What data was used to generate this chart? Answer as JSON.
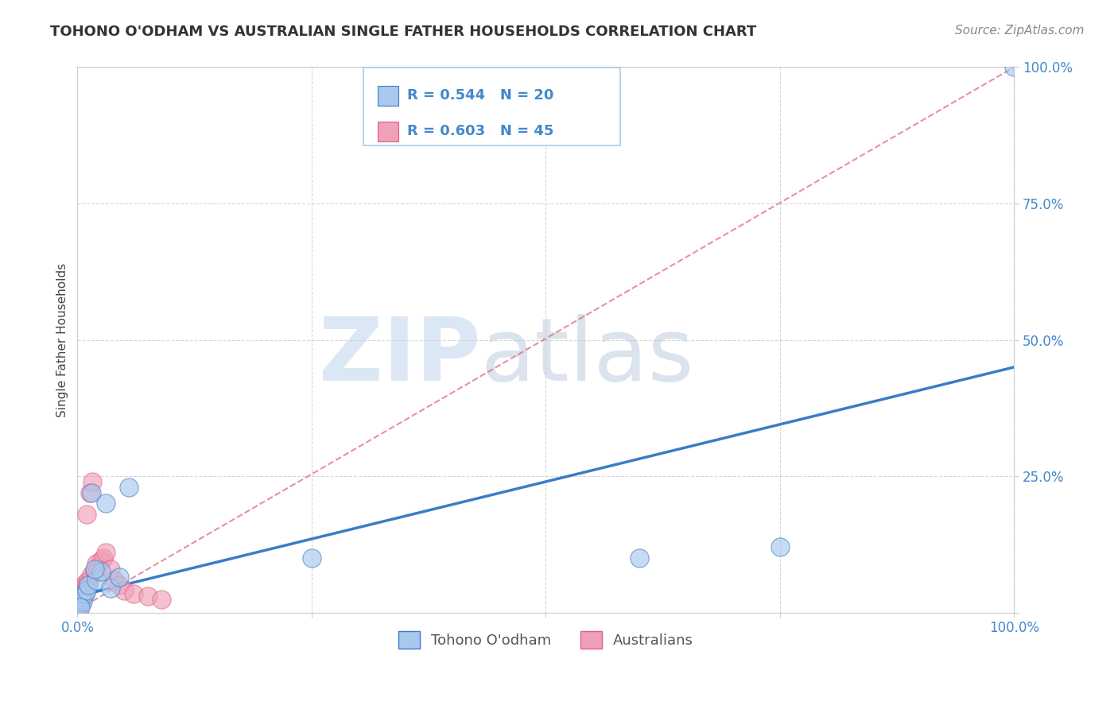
{
  "title": "TOHONO O'ODHAM VS AUSTRALIAN SINGLE FATHER HOUSEHOLDS CORRELATION CHART",
  "source": "Source: ZipAtlas.com",
  "ylabel": "Single Father Households",
  "xlim": [
    0,
    100
  ],
  "ylim": [
    0,
    100
  ],
  "legend1_r": "R = 0.544",
  "legend1_n": "N = 20",
  "legend2_r": "R = 0.603",
  "legend2_n": "N = 45",
  "blue_color": "#A8C8EE",
  "pink_color": "#F0A0B8",
  "blue_line_color": "#3A7CC8",
  "pink_line_color": "#E06080",
  "blue_line_x": [
    0,
    100
  ],
  "blue_line_y": [
    3.0,
    45.0
  ],
  "pink_line_x": [
    0,
    100
  ],
  "pink_line_y": [
    0.5,
    100.0
  ],
  "tohono_x": [
    0.2,
    0.4,
    0.5,
    0.6,
    0.8,
    1.0,
    1.2,
    1.5,
    2.0,
    2.5,
    3.0,
    3.5,
    4.5,
    5.5,
    0.3,
    1.8,
    60.0,
    75.0,
    100.0,
    25.0
  ],
  "tohono_y": [
    1.5,
    2.5,
    3.0,
    2.0,
    3.5,
    4.0,
    5.0,
    22.0,
    6.0,
    7.5,
    20.0,
    4.5,
    6.5,
    23.0,
    1.0,
    8.0,
    10.0,
    12.0,
    100.0,
    10.0
  ],
  "aus_x": [
    0.05,
    0.1,
    0.1,
    0.15,
    0.15,
    0.2,
    0.2,
    0.25,
    0.25,
    0.3,
    0.3,
    0.35,
    0.35,
    0.4,
    0.4,
    0.45,
    0.5,
    0.5,
    0.55,
    0.6,
    0.65,
    0.7,
    0.75,
    0.8,
    0.85,
    0.9,
    1.0,
    1.0,
    1.2,
    1.3,
    1.5,
    1.6,
    1.8,
    2.0,
    2.2,
    2.5,
    2.8,
    3.0,
    3.5,
    4.0,
    4.5,
    5.0,
    6.0,
    7.5,
    9.0
  ],
  "aus_y": [
    0.5,
    1.0,
    0.8,
    1.5,
    1.0,
    2.0,
    1.5,
    2.5,
    2.0,
    2.0,
    1.5,
    2.5,
    3.0,
    2.5,
    3.5,
    3.0,
    3.5,
    2.5,
    4.0,
    3.0,
    3.5,
    4.0,
    4.5,
    5.0,
    4.0,
    5.5,
    18.0,
    5.0,
    6.0,
    22.0,
    7.0,
    24.0,
    7.5,
    9.0,
    8.0,
    9.5,
    10.0,
    11.0,
    8.0,
    6.0,
    5.0,
    4.0,
    3.5,
    3.0,
    2.5
  ],
  "watermark_zip": "ZIP",
  "watermark_atlas": "atlas",
  "grid_color": "#CCCCCC",
  "title_fontsize": 13,
  "source_fontsize": 11,
  "tick_fontsize": 12,
  "ylabel_fontsize": 11
}
